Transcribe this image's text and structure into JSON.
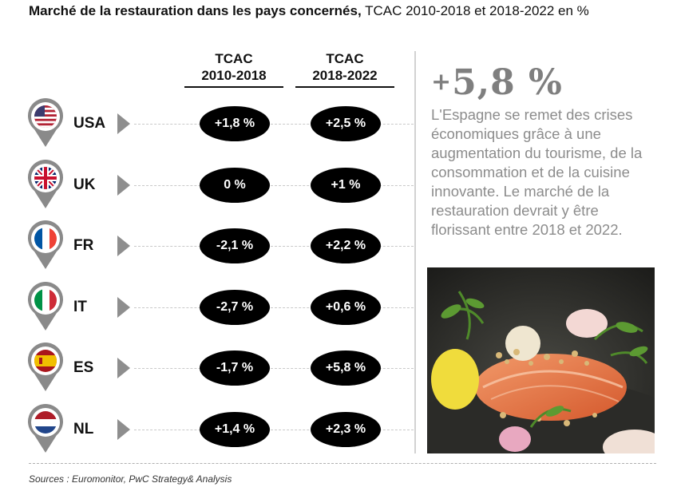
{
  "title": {
    "bold": "Marché de la restauration dans les pays concernés,",
    "rest": " TCAC 2010-2018 et 2018-2022 en %"
  },
  "columns": [
    {
      "line1": "TCAC",
      "line2": "2010-2018"
    },
    {
      "line1": "TCAC",
      "line2": "2018-2022"
    }
  ],
  "chart_data": {
    "type": "table",
    "columns": [
      "TCAC 2010-2018",
      "TCAC 2018-2022"
    ],
    "rows": [
      {
        "country": "USA",
        "flag": "usa-flag-icon",
        "v1": "+1,8 %",
        "v2": "+2,5 %"
      },
      {
        "country": "UK",
        "flag": "uk-flag-icon",
        "v1": "0 %",
        "v2": "+1 %"
      },
      {
        "country": "FR",
        "flag": "france-flag-icon",
        "v1": "-2,1 %",
        "v2": "+2,2 %"
      },
      {
        "country": "IT",
        "flag": "italy-flag-icon",
        "v1": "-2,7 %",
        "v2": "+0,6 %"
      },
      {
        "country": "ES",
        "flag": "spain-flag-icon",
        "v1": "-1,7 %",
        "v2": "+5,8 %"
      },
      {
        "country": "NL",
        "flag": "netherlands-flag-icon",
        "v1": "+1,4 %",
        "v2": "+2,3 %"
      }
    ]
  },
  "highlight": {
    "sign": "+",
    "value": "5,8 %",
    "text": "L'Espagne se remet des crises économiques grâce à une augmentation du tourisme, de la consommation et de la cuisine innovante. Le marché de la restauration devrait y être florissant entre 2018 et 2022."
  },
  "source": "Sources : Euromonitor,  PwC Strategy& Analysis",
  "colors": {
    "pill": "#000000",
    "pin": "#8a8a8a",
    "highlight_text": "#8c8c8c"
  }
}
